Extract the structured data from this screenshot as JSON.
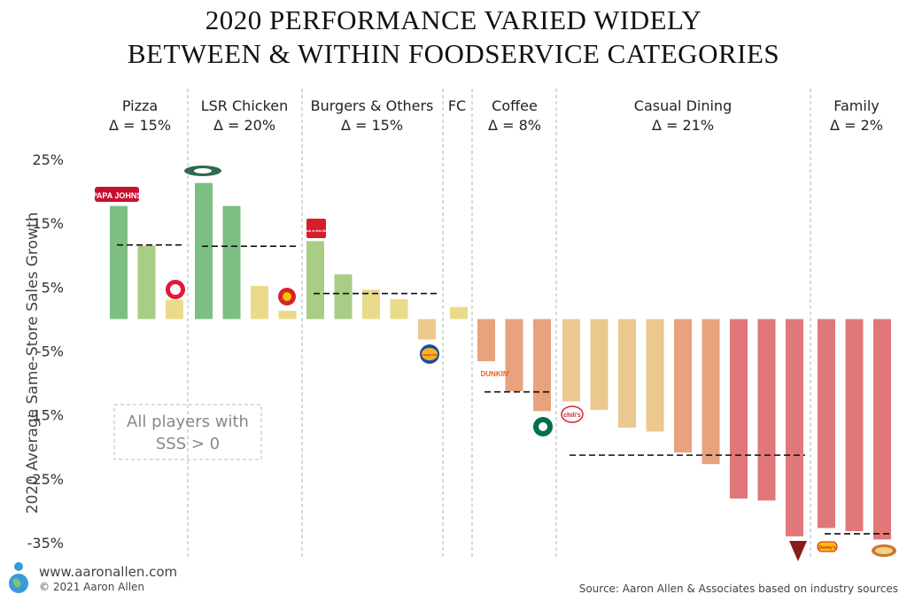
{
  "title_lines": [
    "2020 PERFORMANCE VARIED WIDELY",
    "BETWEEN & WITHIN FOODSERVICE CATEGORIES"
  ],
  "footer": {
    "url": "www.aaronallen.com",
    "copyright": "© 2021 Aaron Allen"
  },
  "source": "Source: Aaron Allen & Associates based on industry sources",
  "note_lines": [
    "All players with",
    "SSS > 0"
  ],
  "colors": {
    "green_dark": "#7dbf82",
    "green_light": "#a9cd85",
    "yellow": "#eadb8a",
    "orange_light": "#ebc88d",
    "orange": "#e8a27e",
    "red": "#e07779",
    "divider": "#b3c5c2"
  },
  "chart_data": {
    "type": "bar",
    "ylabel": "2020 Average Same-Store Sales Growth",
    "ylim": [
      -35,
      25
    ],
    "yticks": [
      25,
      15,
      5,
      -5,
      -15,
      -25,
      -35
    ],
    "tick_labels": [
      "25%",
      "15%",
      "5%",
      "-5%",
      "-15%",
      "-25%",
      "-35%"
    ],
    "categories": [
      {
        "name": "Pizza",
        "delta": "Δ = 15%",
        "values": [
          17.7,
          11.5,
          3.0
        ],
        "average": 11.6
      },
      {
        "name": "LSR Chicken",
        "delta": "Δ = 20%",
        "values": [
          21.3,
          17.7,
          5.2,
          1.3
        ],
        "average": 11.4
      },
      {
        "name": "Burgers & Others",
        "delta": "Δ = 15%",
        "values": [
          12.2,
          7.0,
          4.6,
          3.1,
          -3.2
        ],
        "average": 4.0
      },
      {
        "name": "FC",
        "delta": "",
        "values": [
          1.9
        ],
        "average": null
      },
      {
        "name": "Coffee",
        "delta": "Δ = 8%",
        "values": [
          -6.6,
          -11.3,
          -14.4
        ],
        "average": -11.4
      },
      {
        "name": "Casual Dining",
        "delta": "Δ = 21%",
        "values": [
          -12.9,
          -14.2,
          -17.0,
          -17.6,
          -20.9,
          -22.7,
          -28.1,
          -28.4,
          -34.0
        ],
        "average": -21.3
      },
      {
        "name": "Family",
        "delta": "Δ = 2%",
        "values": [
          -32.7,
          -33.2,
          -34.5
        ],
        "average": -33.6
      }
    ],
    "logos": [
      "PAPA JOHNS",
      "Jack in the Box",
      "BURGER KING",
      "DUNKIN'",
      "chili's",
      "Denny's"
    ]
  }
}
